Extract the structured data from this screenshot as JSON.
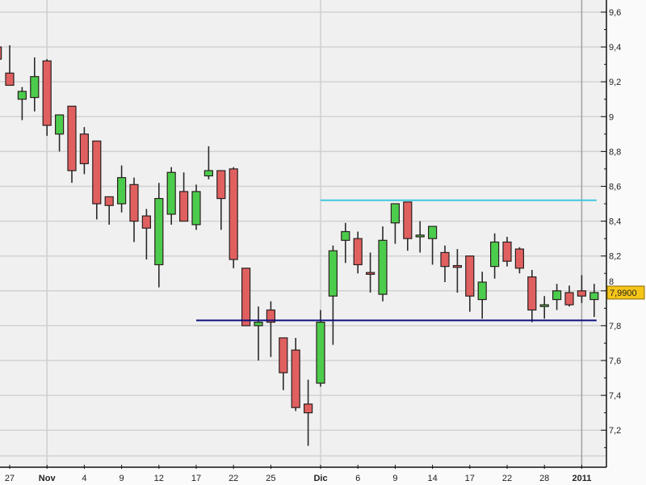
{
  "chart_data": {
    "type": "candlestick",
    "title": "",
    "xlabel": "",
    "ylabel": "",
    "ylim": [
      7.08,
      9.68
    ],
    "grid": true,
    "colors": {
      "up": "#4ccc4c",
      "down": "#e06060",
      "outline": "#2a2020",
      "background": "#f0f0f0",
      "resistance": "#40c8e0",
      "support": "#101080",
      "price_tag": "#f5c518"
    },
    "y_ticks": [
      {
        "value": 9.6,
        "label": "9,6"
      },
      {
        "value": 9.4,
        "label": "9,4"
      },
      {
        "value": 9.2,
        "label": "9,2"
      },
      {
        "value": 9.0,
        "label": "9"
      },
      {
        "value": 8.8,
        "label": "8,8"
      },
      {
        "value": 8.6,
        "label": "8,6"
      },
      {
        "value": 8.4,
        "label": "8,4"
      },
      {
        "value": 8.2,
        "label": "8,2"
      },
      {
        "value": 8.0,
        "label": "8"
      },
      {
        "value": 7.8,
        "label": "7,8"
      },
      {
        "value": 7.6,
        "label": "7,6"
      },
      {
        "value": 7.4,
        "label": "7,4"
      },
      {
        "value": 7.2,
        "label": "7,2"
      }
    ],
    "x_ticks": [
      {
        "index": 1,
        "label": "27",
        "bold": false
      },
      {
        "index": 4,
        "label": "Nov",
        "bold": true,
        "gridline": true
      },
      {
        "index": 7,
        "label": "4",
        "bold": false
      },
      {
        "index": 10,
        "label": "9",
        "bold": false
      },
      {
        "index": 13,
        "label": "12",
        "bold": false
      },
      {
        "index": 16,
        "label": "17",
        "bold": false
      },
      {
        "index": 19,
        "label": "22",
        "bold": false
      },
      {
        "index": 22,
        "label": "25",
        "bold": false
      },
      {
        "index": 26,
        "label": "Dic",
        "bold": true,
        "gridline": true
      },
      {
        "index": 29,
        "label": "6",
        "bold": false
      },
      {
        "index": 32,
        "label": "9",
        "bold": false
      },
      {
        "index": 35,
        "label": "14",
        "bold": false
      },
      {
        "index": 38,
        "label": "17",
        "bold": false
      },
      {
        "index": 41,
        "label": "22",
        "bold": false
      },
      {
        "index": 44,
        "label": "28",
        "bold": false
      },
      {
        "index": 47,
        "label": "2011",
        "bold": true,
        "gridline": true
      }
    ],
    "candles": [
      [
        9.4,
        9.33,
        9.42,
        9.33
      ],
      [
        9.25,
        9.18,
        9.41,
        9.18
      ],
      [
        9.1,
        9.145,
        9.17,
        8.98
      ],
      [
        9.11,
        9.23,
        9.34,
        9.03
      ],
      [
        9.32,
        8.95,
        9.33,
        8.89
      ],
      [
        8.9,
        9.01,
        9.01,
        8.8
      ],
      [
        9.06,
        8.69,
        9.06,
        8.62
      ],
      [
        8.9,
        8.73,
        8.94,
        8.67
      ],
      [
        8.86,
        8.5,
        8.86,
        8.41
      ],
      [
        8.54,
        8.49,
        8.54,
        8.38
      ],
      [
        8.5,
        8.65,
        8.72,
        8.45
      ],
      [
        8.61,
        8.4,
        8.65,
        8.28
      ],
      [
        8.43,
        8.36,
        8.47,
        8.18
      ],
      [
        8.15,
        8.53,
        8.62,
        8.02
      ],
      [
        8.44,
        8.68,
        8.71,
        8.38
      ],
      [
        8.57,
        8.4,
        8.68,
        8.4
      ],
      [
        8.38,
        8.57,
        8.61,
        8.35
      ],
      [
        8.66,
        8.69,
        8.83,
        8.64
      ],
      [
        8.69,
        8.53,
        8.69,
        8.35
      ],
      [
        8.7,
        8.18,
        8.71,
        8.13
      ],
      [
        8.13,
        7.8,
        8.13,
        7.8
      ],
      [
        7.8,
        7.82,
        7.91,
        7.6
      ],
      [
        7.89,
        7.82,
        7.94,
        7.62
      ],
      [
        7.73,
        7.53,
        7.73,
        7.43
      ],
      [
        7.66,
        7.33,
        7.73,
        7.31
      ],
      [
        7.35,
        7.3,
        7.49,
        7.11
      ],
      [
        7.47,
        7.82,
        7.89,
        7.45
      ],
      [
        7.97,
        8.23,
        8.26,
        7.69
      ],
      [
        8.29,
        8.34,
        8.39,
        8.16
      ],
      [
        8.3,
        8.15,
        8.34,
        8.1
      ],
      [
        8.105,
        8.095,
        8.22,
        7.99
      ],
      [
        7.98,
        8.29,
        8.37,
        7.94
      ],
      [
        8.39,
        8.5,
        8.5,
        8.27
      ],
      [
        8.51,
        8.3,
        8.51,
        8.23
      ],
      [
        8.31,
        8.32,
        8.4,
        8.22
      ],
      [
        8.3,
        8.37,
        8.37,
        8.15
      ],
      [
        8.22,
        8.14,
        8.26,
        8.05
      ],
      [
        8.145,
        8.135,
        8.24,
        7.99
      ],
      [
        8.2,
        7.97,
        8.2,
        7.88
      ],
      [
        7.95,
        8.05,
        8.11,
        7.84
      ],
      [
        8.14,
        8.28,
        8.33,
        8.07
      ],
      [
        8.28,
        8.17,
        8.31,
        8.14
      ],
      [
        8.24,
        8.13,
        8.25,
        8.1
      ],
      [
        8.08,
        7.89,
        8.12,
        7.82
      ],
      [
        7.91,
        7.92,
        7.97,
        7.84
      ],
      [
        7.95,
        8.0,
        8.04,
        7.89
      ],
      [
        7.99,
        7.92,
        8.03,
        7.91
      ],
      [
        8.0,
        7.97,
        8.09,
        7.93
      ],
      [
        7.95,
        7.99,
        8.04,
        7.85
      ]
    ],
    "candle_fields": [
      "open",
      "close",
      "high",
      "low"
    ],
    "lines": [
      {
        "value": 8.52,
        "from_index": 26,
        "to_index": 48,
        "color": "#40c8e0"
      },
      {
        "value": 7.83,
        "from_index": 16,
        "to_index": 48,
        "color": "#101080"
      }
    ],
    "last_price": {
      "value": 7.99,
      "label": "7,9900"
    }
  }
}
